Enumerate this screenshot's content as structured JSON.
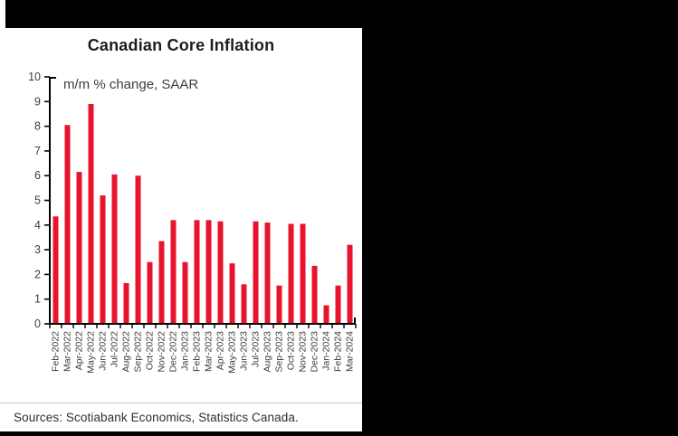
{
  "header": {
    "title": "Canadian Core Inflation",
    "subtitle": "m/m % change, SAAR"
  },
  "footer": {
    "source_text": "Sources: Scotiabank Economics, Statistics Canada."
  },
  "colors": {
    "bar": "#e8132d",
    "axis": "#000000",
    "title_text": "#1d1d1d",
    "label_text": "#3d3d3d",
    "separator": "#c9c9c9",
    "card_bg": "#ffffff",
    "page_bg": "#000000"
  },
  "chart_data": {
    "type": "bar",
    "title": "Canadian Core Inflation",
    "subtitle": "m/m % change, SAAR",
    "xlabel": "",
    "ylabel": "m/m % change, SAAR",
    "ylim": [
      0,
      10
    ],
    "ytick_interval": 1,
    "ytick_labels": [
      "0",
      "1",
      "2",
      "3",
      "4",
      "5",
      "6",
      "7",
      "8",
      "9",
      "10"
    ],
    "grid": false,
    "legend_position": "none",
    "bar_color": "#e8132d",
    "categories": [
      "Feb-2022",
      "Mar-2022",
      "Apr-2022",
      "May-2022",
      "Jun-2022",
      "Jul-2022",
      "Aug-2022",
      "Sep-2022",
      "Oct-2022",
      "Nov-2022",
      "Dec-2022",
      "Jan-2023",
      "Feb-2023",
      "Mar-2023",
      "Apr-2023",
      "May-2023",
      "Jun-2023",
      "Jul-2023",
      "Aug-2023",
      "Sep-2023",
      "Oct-2023",
      "Nov-2023",
      "Dec-2023",
      "Jan-2024",
      "Feb-2024",
      "Mar-2024"
    ],
    "values": [
      4.35,
      8.05,
      6.15,
      8.9,
      5.2,
      6.05,
      1.65,
      6.0,
      2.5,
      3.35,
      4.2,
      2.5,
      4.2,
      4.2,
      4.15,
      2.45,
      1.6,
      4.15,
      4.1,
      1.55,
      4.05,
      4.05,
      2.35,
      0.75,
      1.55,
      3.2
    ]
  }
}
